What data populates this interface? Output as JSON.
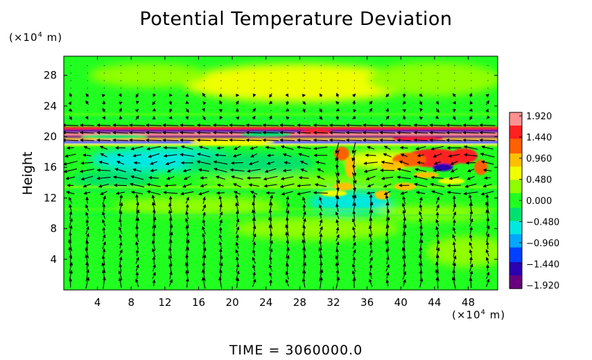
{
  "chart_data": {
    "type": "heatmap",
    "title": "Potential Temperature Deviation",
    "ylabel": "Height",
    "x_unit_prefix": "(×10",
    "x_unit_exp": "4",
    "x_unit_suffix": " m)",
    "y_unit_prefix": "(×10",
    "y_unit_exp": "4",
    "y_unit_suffix": " m)",
    "footer": "TIME = 3060000.0",
    "x_ticks": [
      "4",
      "8",
      "12",
      "16",
      "20",
      "24",
      "28",
      "32",
      "36",
      "40",
      "44",
      "48"
    ],
    "x_tick_values": [
      4,
      8,
      12,
      16,
      20,
      24,
      28,
      32,
      36,
      40,
      44,
      48
    ],
    "y_ticks": [
      "4",
      "8",
      "12",
      "16",
      "20",
      "24",
      "28"
    ],
    "y_tick_values": [
      4,
      8,
      12,
      16,
      20,
      24,
      28
    ],
    "xlim": [
      0,
      51.5
    ],
    "ylim": [
      0,
      30.5
    ],
    "colorbar": {
      "labels": [
        "1.920",
        "1.440",
        "0.960",
        "0.480",
        "0.000",
        "-0.480",
        "-0.960",
        "-1.440",
        "-1.920"
      ],
      "values": [
        1.92,
        1.44,
        0.96,
        0.48,
        0.0,
        -0.48,
        -0.96,
        -1.44,
        -1.92
      ],
      "range": [
        -2.0,
        2.0
      ],
      "colors": [
        "#6a0080",
        "#2a00b0",
        "#0040ff",
        "#00a8ff",
        "#00e8e0",
        "#00e070",
        "#20ff20",
        "#90ff00",
        "#f0ff00",
        "#ffc000",
        "#ff6000",
        "#ff2020",
        "#ff9090"
      ]
    },
    "features": [
      {
        "name": "upper layer band",
        "y_range": [
          19.5,
          21.5
        ],
        "x_range": [
          0,
          51.5
        ],
        "value_range": [
          -1.92,
          1.92
        ]
      },
      {
        "name": "warm anomaly",
        "x_range": [
          38,
          50
        ],
        "y_range": [
          15,
          19
        ],
        "peak": 1.6
      },
      {
        "name": "warm plume",
        "x_range": [
          31,
          36
        ],
        "y_range": [
          12,
          19
        ],
        "peak": 1.2
      },
      {
        "name": "cool layer",
        "x_range": [
          2,
          22
        ],
        "y_range": [
          15,
          19
        ],
        "value": -0.48
      }
    ],
    "grid": false,
    "legend": "colorbar right"
  }
}
